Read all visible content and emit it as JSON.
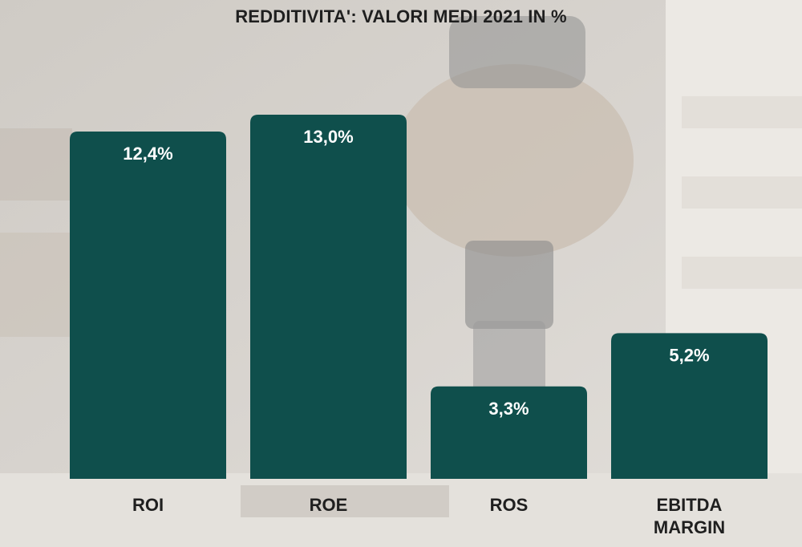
{
  "chart_data": {
    "type": "bar",
    "title": "REDDITIVITA': VALORI MEDI 2021 IN %",
    "categories": [
      "ROI",
      "ROE",
      "ROS",
      "EBITDA MARGIN"
    ],
    "values": [
      12.4,
      13.0,
      3.3,
      5.2
    ],
    "value_labels": [
      "12,4%",
      "13,0%",
      "3,3%",
      "5,2%"
    ],
    "unit": "%",
    "xlabel": "",
    "ylabel": "",
    "ylim": [
      0,
      13.0
    ],
    "grid": false,
    "legend": "none",
    "bar_color": "#0f4f4c"
  }
}
